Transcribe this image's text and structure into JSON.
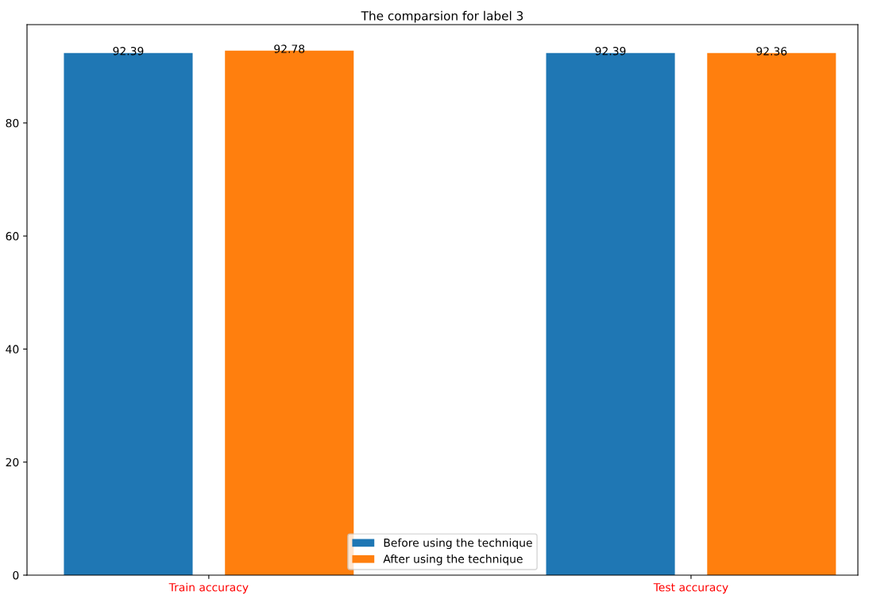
{
  "chart_data": {
    "type": "bar",
    "title": "The comparsion for label 3",
    "categories": [
      "Train accuracy",
      "Test accuracy"
    ],
    "series": [
      {
        "name": "Before using the technique",
        "color": "#1f77b4",
        "values": [
          92.39,
          92.39
        ]
      },
      {
        "name": "After using the technique",
        "color": "#ff7f0e",
        "values": [
          92.78,
          92.36
        ]
      }
    ],
    "ylim": [
      0,
      97.4
    ],
    "yticks": [
      0,
      20,
      40,
      60,
      80
    ],
    "data_labels": true,
    "legend": "bottom",
    "grid": false
  }
}
